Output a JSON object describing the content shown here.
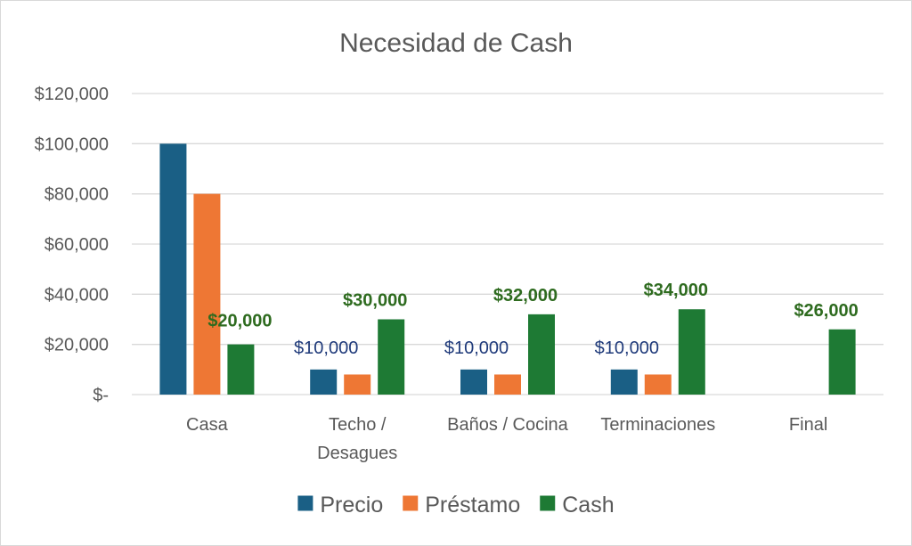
{
  "chart_data": {
    "type": "bar",
    "title": "Necesidad de Cash",
    "xlabel": "",
    "ylabel": "",
    "ylim": [
      0,
      120000
    ],
    "yticks": [
      0,
      20000,
      40000,
      60000,
      80000,
      100000,
      120000
    ],
    "ytick_labels": [
      "$-",
      "$20,000",
      "$40,000",
      "$60,000",
      "$80,000",
      "$100,000",
      "$120,000"
    ],
    "grid": true,
    "legend_position": "bottom",
    "categories": [
      [
        "Casa"
      ],
      [
        "Techo /",
        "Desagues"
      ],
      [
        "Baños / Cocina"
      ],
      [
        "Terminaciones"
      ],
      [
        "Final"
      ]
    ],
    "series": [
      {
        "name": "Precio",
        "color": "#1a5f85",
        "values": [
          100000,
          10000,
          10000,
          10000,
          null
        ],
        "data_labels": [
          null,
          "$10,000",
          "$10,000",
          "$10,000",
          null
        ]
      },
      {
        "name": "Préstamo",
        "color": "#ee7734",
        "values": [
          80000,
          8000,
          8000,
          8000,
          null
        ],
        "data_labels": [
          null,
          null,
          null,
          null,
          null
        ]
      },
      {
        "name": "Cash",
        "color": "#1e7a34",
        "values": [
          20000,
          30000,
          32000,
          34000,
          26000
        ],
        "data_labels": [
          "$20,000",
          "$30,000",
          "$32,000",
          "$34,000",
          "$26,000"
        ]
      }
    ]
  }
}
